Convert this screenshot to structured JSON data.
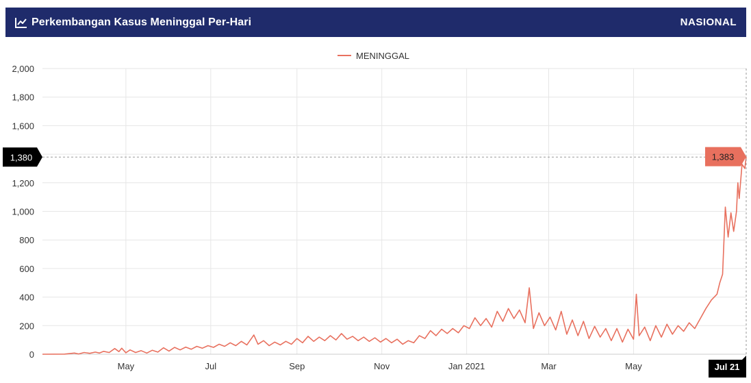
{
  "header": {
    "title": "Perkembangan Kasus Meninggal Per-Hari",
    "badge": "NASIONAL",
    "icon": "line-chart-icon"
  },
  "colors": {
    "header_bg": "#1f2b6b",
    "series": "#e8705e",
    "crosshair_label_bg": "#000000",
    "point_label_bg": "#e8705e"
  },
  "chart_data": {
    "type": "line",
    "title": "",
    "xlabel": "",
    "ylabel": "",
    "legend": {
      "position": "top-center",
      "entries": [
        "MENINGGAL"
      ]
    },
    "grid": true,
    "ylim": [
      0,
      2000
    ],
    "y_ticks": [
      "0",
      "200",
      "400",
      "600",
      "800",
      "1,000",
      "1,200",
      "1,400",
      "1,600",
      "1,800",
      "2,000"
    ],
    "y_tick_values": [
      0,
      200,
      400,
      600,
      800,
      1000,
      1200,
      1400,
      1600,
      1800,
      2000
    ],
    "xlim": [
      "2020-03-02",
      "2021-07-21"
    ],
    "x_ticks": [
      {
        "label": "May",
        "date": "2020-05-01"
      },
      {
        "label": "Jul",
        "date": "2020-07-01"
      },
      {
        "label": "Sep",
        "date": "2020-09-01"
      },
      {
        "label": "Nov",
        "date": "2020-11-01"
      },
      {
        "label": "Jan 2021",
        "date": "2021-01-01"
      },
      {
        "label": "Mar",
        "date": "2021-03-01"
      },
      {
        "label": "May",
        "date": "2021-05-01"
      }
    ],
    "crosshair": {
      "x_label": "Jul 21",
      "y_label": "1,380",
      "y_value": 1380,
      "point_label": "1,383",
      "point_value": 1383
    },
    "series": [
      {
        "name": "MENINGGAL",
        "points": [
          [
            "2020-03-02",
            0
          ],
          [
            "2020-03-18",
            1
          ],
          [
            "2020-03-25",
            8
          ],
          [
            "2020-03-28",
            2
          ],
          [
            "2020-04-01",
            12
          ],
          [
            "2020-04-05",
            6
          ],
          [
            "2020-04-09",
            15
          ],
          [
            "2020-04-12",
            8
          ],
          [
            "2020-04-15",
            20
          ],
          [
            "2020-04-19",
            12
          ],
          [
            "2020-04-23",
            40
          ],
          [
            "2020-04-26",
            18
          ],
          [
            "2020-04-28",
            42
          ],
          [
            "2020-05-01",
            10
          ],
          [
            "2020-05-04",
            30
          ],
          [
            "2020-05-08",
            12
          ],
          [
            "2020-05-12",
            25
          ],
          [
            "2020-05-16",
            8
          ],
          [
            "2020-05-20",
            28
          ],
          [
            "2020-05-24",
            15
          ],
          [
            "2020-05-28",
            45
          ],
          [
            "2020-06-01",
            22
          ],
          [
            "2020-06-05",
            48
          ],
          [
            "2020-06-09",
            30
          ],
          [
            "2020-06-13",
            50
          ],
          [
            "2020-06-17",
            35
          ],
          [
            "2020-06-21",
            55
          ],
          [
            "2020-06-25",
            42
          ],
          [
            "2020-06-29",
            60
          ],
          [
            "2020-07-03",
            48
          ],
          [
            "2020-07-07",
            70
          ],
          [
            "2020-07-11",
            55
          ],
          [
            "2020-07-15",
            80
          ],
          [
            "2020-07-19",
            60
          ],
          [
            "2020-07-23",
            90
          ],
          [
            "2020-07-27",
            65
          ],
          [
            "2020-08-01",
            135
          ],
          [
            "2020-08-04",
            70
          ],
          [
            "2020-08-08",
            95
          ],
          [
            "2020-08-12",
            60
          ],
          [
            "2020-08-16",
            85
          ],
          [
            "2020-08-20",
            65
          ],
          [
            "2020-08-24",
            90
          ],
          [
            "2020-08-28",
            70
          ],
          [
            "2020-09-01",
            110
          ],
          [
            "2020-09-05",
            80
          ],
          [
            "2020-09-09",
            125
          ],
          [
            "2020-09-13",
            90
          ],
          [
            "2020-09-17",
            120
          ],
          [
            "2020-09-21",
            95
          ],
          [
            "2020-09-25",
            130
          ],
          [
            "2020-09-29",
            100
          ],
          [
            "2020-10-03",
            145
          ],
          [
            "2020-10-07",
            105
          ],
          [
            "2020-10-11",
            125
          ],
          [
            "2020-10-15",
            95
          ],
          [
            "2020-10-19",
            120
          ],
          [
            "2020-10-23",
            90
          ],
          [
            "2020-10-27",
            115
          ],
          [
            "2020-10-31",
            85
          ],
          [
            "2020-11-04",
            110
          ],
          [
            "2020-11-08",
            80
          ],
          [
            "2020-11-12",
            105
          ],
          [
            "2020-11-16",
            70
          ],
          [
            "2020-11-20",
            95
          ],
          [
            "2020-11-24",
            80
          ],
          [
            "2020-11-28",
            130
          ],
          [
            "2020-12-02",
            110
          ],
          [
            "2020-12-06",
            165
          ],
          [
            "2020-12-10",
            130
          ],
          [
            "2020-12-14",
            175
          ],
          [
            "2020-12-18",
            145
          ],
          [
            "2020-12-22",
            180
          ],
          [
            "2020-12-26",
            150
          ],
          [
            "2020-12-30",
            200
          ],
          [
            "2021-01-03",
            180
          ],
          [
            "2021-01-07",
            255
          ],
          [
            "2021-01-11",
            200
          ],
          [
            "2021-01-15",
            250
          ],
          [
            "2021-01-19",
            190
          ],
          [
            "2021-01-23",
            300
          ],
          [
            "2021-01-27",
            230
          ],
          [
            "2021-01-31",
            320
          ],
          [
            "2021-02-04",
            250
          ],
          [
            "2021-02-08",
            310
          ],
          [
            "2021-02-12",
            220
          ],
          [
            "2021-02-15",
            465
          ],
          [
            "2021-02-18",
            180
          ],
          [
            "2021-02-22",
            290
          ],
          [
            "2021-02-26",
            200
          ],
          [
            "2021-03-02",
            260
          ],
          [
            "2021-03-06",
            170
          ],
          [
            "2021-03-10",
            300
          ],
          [
            "2021-03-14",
            140
          ],
          [
            "2021-03-18",
            240
          ],
          [
            "2021-03-22",
            130
          ],
          [
            "2021-03-26",
            230
          ],
          [
            "2021-03-30",
            110
          ],
          [
            "2021-04-03",
            195
          ],
          [
            "2021-04-07",
            120
          ],
          [
            "2021-04-11",
            180
          ],
          [
            "2021-04-15",
            95
          ],
          [
            "2021-04-19",
            180
          ],
          [
            "2021-04-23",
            85
          ],
          [
            "2021-04-27",
            175
          ],
          [
            "2021-05-01",
            105
          ],
          [
            "2021-05-03",
            420
          ],
          [
            "2021-05-05",
            130
          ],
          [
            "2021-05-09",
            190
          ],
          [
            "2021-05-13",
            95
          ],
          [
            "2021-05-17",
            200
          ],
          [
            "2021-05-21",
            120
          ],
          [
            "2021-05-25",
            210
          ],
          [
            "2021-05-29",
            140
          ],
          [
            "2021-06-02",
            200
          ],
          [
            "2021-06-06",
            160
          ],
          [
            "2021-06-10",
            220
          ],
          [
            "2021-06-14",
            180
          ],
          [
            "2021-06-18",
            250
          ],
          [
            "2021-06-22",
            320
          ],
          [
            "2021-06-26",
            380
          ],
          [
            "2021-06-30",
            420
          ],
          [
            "2021-07-02",
            500
          ],
          [
            "2021-07-04",
            560
          ],
          [
            "2021-07-06",
            1030
          ],
          [
            "2021-07-08",
            820
          ],
          [
            "2021-07-10",
            990
          ],
          [
            "2021-07-12",
            860
          ],
          [
            "2021-07-14",
            1000
          ],
          [
            "2021-07-15",
            1200
          ],
          [
            "2021-07-16",
            1090
          ],
          [
            "2021-07-18",
            1330
          ],
          [
            "2021-07-20",
            1300
          ],
          [
            "2021-07-21",
            1383
          ]
        ]
      }
    ]
  }
}
